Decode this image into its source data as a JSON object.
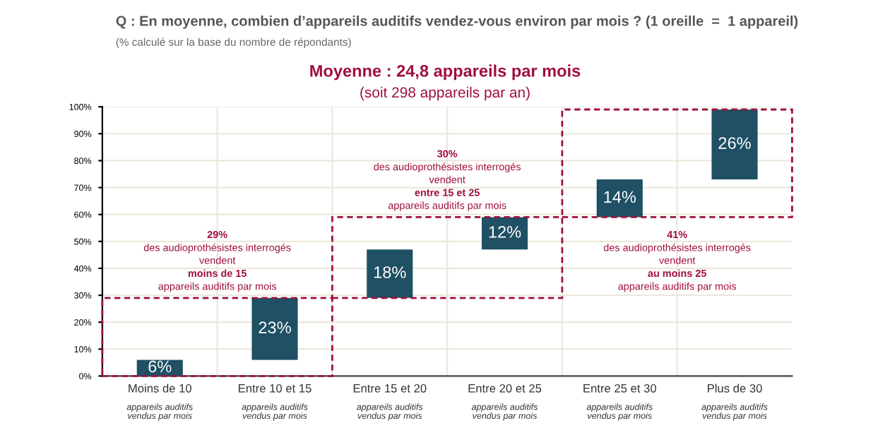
{
  "chart_data": {
    "type": "bar",
    "title": "Q : En moyenne, combien d’appareils auditifs vendez-vous environ par mois ? (1 oreille  =  1 appareil)",
    "subtitle": "(% calculé sur la base du nombre de répondants)",
    "categories": [
      "Moins de 10\nappareils auditifs\nvendus par mois",
      "Entre 10 et 15\nappareils auditifs\nvendus par mois",
      "Entre 15 et 20\nappareils auditifs\nvendus par mois",
      "Entre 20 et 25\nappareils auditifs\nvendus par mois",
      "Entre 25 et 30\nappareils auditifs\nvendus par mois",
      "Plus de 30\nappareils auditifs\nvendus par mois"
    ],
    "values": [
      6,
      23,
      18,
      12,
      14,
      26
    ],
    "base": [
      0,
      6,
      29,
      47,
      59,
      73
    ],
    "color": "#1f5064",
    "value_labels": [
      "6%",
      "23%",
      "18%",
      "12%",
      "14%",
      "26%"
    ],
    "ylim": [
      0,
      100
    ],
    "yticks": [
      {
        "value": 0,
        "label": "0%"
      },
      {
        "value": 10,
        "label": "10%"
      },
      {
        "value": 20,
        "label": "20%"
      },
      {
        "value": 30,
        "label": "30%"
      },
      {
        "value": 40,
        "label": "40%"
      },
      {
        "value": 50,
        "label": "50%"
      },
      {
        "value": 60,
        "label": "60%"
      },
      {
        "value": 70,
        "label": "70%"
      },
      {
        "value": 80,
        "label": "80%"
      },
      {
        "value": 90,
        "label": "90%"
      },
      {
        "value": 100,
        "label": "100%"
      }
    ],
    "grid": true,
    "annotations": [
      "Moyenne : 24,8 appareils par mois\n(soit 298 appareils par an)",
      "29%\ndes audioprothésistes interrogés\nvendent\nmoins de 15\nappareils auditifs par mois",
      "30%\ndes audioprothésistes interrogés\nvendent\nentre 15 et 25\nappareils auditifs par mois",
      "41%\ndes audioprothésistes interrogés\nvendent\nau moins 25\nappareils auditifs par mois"
    ]
  }
}
